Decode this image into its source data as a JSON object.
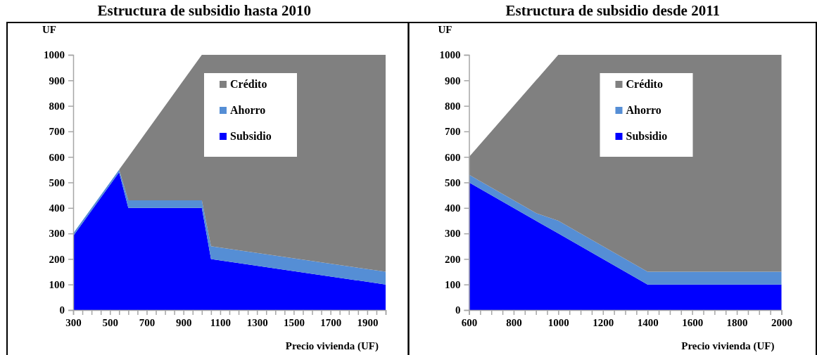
{
  "chart_data": [
    {
      "type": "area",
      "title": "Estructura de subsidio hasta 2010",
      "xlabel": "Precio vivienda (UF)",
      "ylabel": "UF",
      "stacked": true,
      "legend": "top",
      "x": [
        300,
        550,
        600,
        1000,
        1050,
        2000
      ],
      "series": [
        {
          "name": "Subsidio",
          "color": "#0000ff",
          "values": [
            290,
            540,
            400,
            400,
            200,
            100
          ]
        },
        {
          "name": "Ahorro",
          "color": "#558ed5",
          "values": [
            10,
            10,
            30,
            30,
            50,
            50
          ]
        },
        {
          "name": "Crédito",
          "color": "#808080",
          "values": [
            0,
            0,
            170,
            570,
            750,
            850
          ]
        }
      ],
      "xlim": [
        300,
        2000
      ],
      "ylim": [
        0,
        1000
      ],
      "yticks": [
        0,
        100,
        200,
        300,
        400,
        500,
        600,
        700,
        800,
        900,
        1000
      ],
      "xticks": [
        300,
        {
          "value": 350,
          "label": null
        },
        {
          "value": 400,
          "label": null
        },
        {
          "value": 450,
          "label": null
        },
        500,
        {
          "value": 550,
          "label": null
        },
        {
          "value": 600,
          "label": null
        },
        {
          "value": 650,
          "label": null
        },
        700,
        {
          "value": 750,
          "label": null
        },
        {
          "value": 800,
          "label": null
        },
        {
          "value": 850,
          "label": null
        },
        900,
        {
          "value": 950,
          "label": null
        },
        {
          "value": 1000,
          "label": null
        },
        {
          "value": 1050,
          "label": null
        },
        1100,
        {
          "value": 1150,
          "label": null
        },
        {
          "value": 1200,
          "label": null
        },
        {
          "value": 1250,
          "label": null
        },
        1300,
        {
          "value": 1350,
          "label": null
        },
        {
          "value": 1400,
          "label": null
        },
        {
          "value": 1450,
          "label": null
        },
        1500,
        {
          "value": 1550,
          "label": null
        },
        {
          "value": 1600,
          "label": null
        },
        {
          "value": 1650,
          "label": null
        },
        1700,
        {
          "value": 1750,
          "label": null
        },
        {
          "value": 1800,
          "label": null
        },
        {
          "value": 1850,
          "label": null
        },
        1900,
        {
          "value": 1950,
          "label": null
        },
        {
          "value": 2000,
          "label": null
        }
      ]
    },
    {
      "type": "area",
      "title": "Estructura de subsidio desde 2011",
      "xlabel": "Precio vivienda (UF)",
      "ylabel": "UF",
      "stacked": true,
      "legend": "top",
      "x": [
        600,
        900,
        1000,
        1400,
        2000
      ],
      "series": [
        {
          "name": "Subsidio",
          "color": "#0000ff",
          "values": [
            500,
            350,
            300,
            100,
            100
          ]
        },
        {
          "name": "Ahorro",
          "color": "#558ed5",
          "values": [
            30,
            30,
            50,
            50,
            50
          ]
        },
        {
          "name": "Crédito",
          "color": "#808080",
          "values": [
            70,
            520,
            650,
            850,
            850
          ]
        }
      ],
      "xlim": [
        600,
        2000
      ],
      "ylim": [
        0,
        1000
      ],
      "yticks": [
        0,
        100,
        200,
        300,
        400,
        500,
        600,
        700,
        800,
        900,
        1000
      ],
      "xticks": [
        600,
        {
          "value": 650,
          "label": null
        },
        {
          "value": 700,
          "label": null
        },
        {
          "value": 750,
          "label": null
        },
        800,
        {
          "value": 850,
          "label": null
        },
        {
          "value": 900,
          "label": null
        },
        {
          "value": 950,
          "label": null
        },
        1000,
        {
          "value": 1050,
          "label": null
        },
        {
          "value": 1100,
          "label": null
        },
        {
          "value": 1150,
          "label": null
        },
        1200,
        {
          "value": 1250,
          "label": null
        },
        {
          "value": 1300,
          "label": null
        },
        {
          "value": 1350,
          "label": null
        },
        1400,
        {
          "value": 1450,
          "label": null
        },
        {
          "value": 1500,
          "label": null
        },
        {
          "value": 1550,
          "label": null
        },
        1600,
        {
          "value": 1650,
          "label": null
        },
        {
          "value": 1700,
          "label": null
        },
        {
          "value": 1750,
          "label": null
        },
        1800,
        {
          "value": 1850,
          "label": null
        },
        {
          "value": 1900,
          "label": null
        },
        {
          "value": 1950,
          "label": null
        },
        2000
      ]
    }
  ]
}
